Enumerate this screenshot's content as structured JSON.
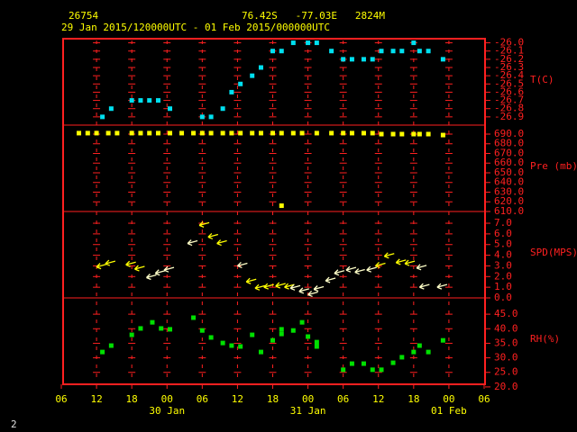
{
  "header": {
    "station": "26754",
    "location": "76.42S   -77.03E   2824M",
    "period": "29 Jan 2015/120000UTC - 01 Feb 2015/000000UTC",
    "page": "2"
  },
  "x_axis": {
    "xlim": [
      6,
      78
    ],
    "xticks": [
      {
        "value": 6,
        "label": "06"
      },
      12,
      18,
      {
        "value": 24,
        "label": "00"
      },
      {
        "value": 30,
        "label": "06"
      },
      {
        "value": 36,
        "label": "12"
      },
      {
        "value": 42,
        "label": "18"
      },
      {
        "value": 48,
        "label": "00"
      },
      {
        "value": 54,
        "label": "06"
      },
      {
        "value": 60,
        "label": "12"
      },
      {
        "value": 66,
        "label": "18"
      },
      {
        "value": 72,
        "label": "00"
      },
      {
        "value": 78,
        "label": "06"
      }
    ],
    "date_labels": [
      {
        "value": 24,
        "label": "30 Jan"
      },
      {
        "value": 48,
        "label": "31 Jan"
      },
      {
        "value": 72,
        "label": "01 Feb"
      }
    ]
  },
  "chart_data": [
    {
      "type": "scatter",
      "ylabel": "T(C)",
      "ylim": [
        -27.0,
        -25.95
      ],
      "yticks": [
        {
          "value": -26,
          "label": "-26.0"
        },
        -26.1,
        -26.2,
        -26.3,
        -26.4,
        -26.5,
        -26.6,
        -26.7,
        -26.8,
        -26.9
      ],
      "series": [
        {
          "color": "#00e0f0",
          "x": [
            13,
            14.5,
            18,
            19.5,
            21,
            22.5,
            24.5,
            30,
            31.5,
            33.5,
            35,
            36.5,
            38.5,
            40,
            42,
            43.5,
            45.5,
            48,
            49.5,
            52,
            54,
            55.5,
            57.5,
            59,
            60.5,
            62.5,
            64,
            66,
            67,
            68.5,
            71
          ],
          "values": [
            -26.9,
            -26.8,
            -26.7,
            -26.7,
            -26.7,
            -26.7,
            -26.8,
            -26.9,
            -26.9,
            -26.8,
            -26.6,
            -26.5,
            -26.4,
            -26.3,
            -26.1,
            -26.1,
            -26.0,
            -26.0,
            -26.0,
            -26.1,
            -26.2,
            -26.2,
            -26.2,
            -26.2,
            -26.1,
            -26.1,
            -26.1,
            -26.0,
            -26.1,
            -26.1,
            -26.2
          ]
        }
      ]
    },
    {
      "type": "scatter",
      "ylabel": "Pre (mb)",
      "ylim": [
        610,
        699.3
      ],
      "yticks": [
        {
          "value": 610,
          "label": "610.0"
        },
        {
          "value": 620,
          "label": "620.0"
        },
        {
          "value": 630,
          "label": "630.0"
        },
        {
          "value": 640,
          "label": "640.0"
        },
        {
          "value": 650,
          "label": "650.0"
        },
        {
          "value": 660,
          "label": "660.0"
        },
        {
          "value": 670,
          "label": "670.0"
        },
        {
          "value": 680,
          "label": "680.0"
        },
        {
          "value": 690,
          "label": "690.0"
        }
      ],
      "series": [
        {
          "color": "#ffff00",
          "x": [
            9,
            10.5,
            12,
            14,
            15.5,
            18,
            19.5,
            21,
            22.5,
            24.5,
            26.5,
            28.5,
            30,
            31.5,
            33.5,
            35,
            36.5,
            38.5,
            40,
            42,
            43.5,
            45.5,
            47,
            49.5,
            52,
            54,
            55.5,
            57.5,
            59,
            60.5,
            62.5,
            64,
            66,
            67,
            68.5,
            71,
            43.5
          ],
          "values": [
            691,
            691,
            691,
            691,
            691,
            691,
            691,
            691,
            691,
            691,
            691,
            691,
            691,
            691,
            691,
            691,
            691,
            691,
            691,
            691,
            691,
            691,
            691,
            691,
            691,
            691,
            691,
            691,
            691,
            690,
            690,
            690,
            690,
            690,
            690,
            689,
            616
          ]
        }
      ]
    },
    {
      "type": "quiver",
      "ylabel": "SPD(MPS)",
      "ylim": [
        0,
        8.1
      ],
      "yticks": [
        {
          "value": 0,
          "label": "0.0"
        },
        {
          "value": 1,
          "label": "1.0"
        },
        {
          "value": 2,
          "label": "2.0"
        },
        {
          "value": 3,
          "label": "3.0"
        },
        {
          "value": 4,
          "label": "4.0"
        },
        {
          "value": 5,
          "label": "5.0"
        },
        {
          "value": 6,
          "label": "6.0"
        },
        {
          "value": 7,
          "label": "7.0"
        }
      ],
      "series": [
        {
          "color": "#ffff00",
          "x": [
            12,
            13.5,
            17,
            18.5,
            29.5,
            31,
            32.5,
            37.5,
            39,
            40.5,
            42.5,
            44,
            59.5,
            61,
            63,
            64.5
          ],
          "values": [
            2.9,
            3.2,
            3.1,
            2.7,
            6.8,
            5.7,
            5.1,
            1.5,
            0.9,
            1.0,
            1.1,
            1.0,
            3.0,
            3.9,
            3.3,
            3.2
          ]
        },
        {
          "color": "#ffffc8",
          "x": [
            20.5,
            22,
            23.5,
            27.5,
            36,
            45,
            46.5,
            48,
            49,
            51,
            52.5,
            54.5,
            56,
            58,
            66.5,
            67,
            70
          ],
          "values": [
            1.9,
            2.3,
            2.6,
            5.1,
            3.0,
            0.9,
            0.6,
            0.3,
            0.8,
            1.6,
            2.3,
            2.6,
            2.4,
            2.6,
            2.8,
            1.0,
            1.0
          ]
        }
      ]
    },
    {
      "type": "scatter",
      "ylabel": "RH(%)",
      "ylim": [
        20.9,
        50.6
      ],
      "yticks": [
        {
          "value": 20,
          "label": "20.0"
        },
        {
          "value": 25,
          "label": "25.0"
        },
        {
          "value": 30,
          "label": "30.0"
        },
        {
          "value": 35,
          "label": "35.0"
        },
        {
          "value": 40,
          "label": "40.0"
        },
        {
          "value": 45,
          "label": "45.0"
        }
      ],
      "series": [
        {
          "color": "#00e000",
          "x": [
            13,
            14.5,
            18,
            19.5,
            21.5,
            23,
            24.5,
            28.5,
            30,
            31.5,
            33.5,
            35,
            36.5,
            38.5,
            40,
            42,
            43.5,
            43.5,
            45.5,
            47,
            48,
            49.5,
            49.5,
            54,
            55.5,
            57.5,
            59,
            60.5,
            62.5,
            64,
            66,
            67,
            68.5,
            71
          ],
          "values": [
            32.0,
            34.2,
            37.9,
            40.1,
            42.2,
            40.1,
            39.8,
            43.8,
            39.4,
            37.0,
            35.1,
            34.2,
            33.9,
            37.9,
            32.0,
            36.0,
            38.2,
            39.8,
            39.4,
            42.2,
            37.3,
            35.4,
            33.9,
            25.9,
            28.0,
            28.0,
            25.9,
            25.9,
            28.3,
            30.2,
            32.0,
            34.2,
            32.0,
            36.0
          ]
        }
      ]
    }
  ]
}
